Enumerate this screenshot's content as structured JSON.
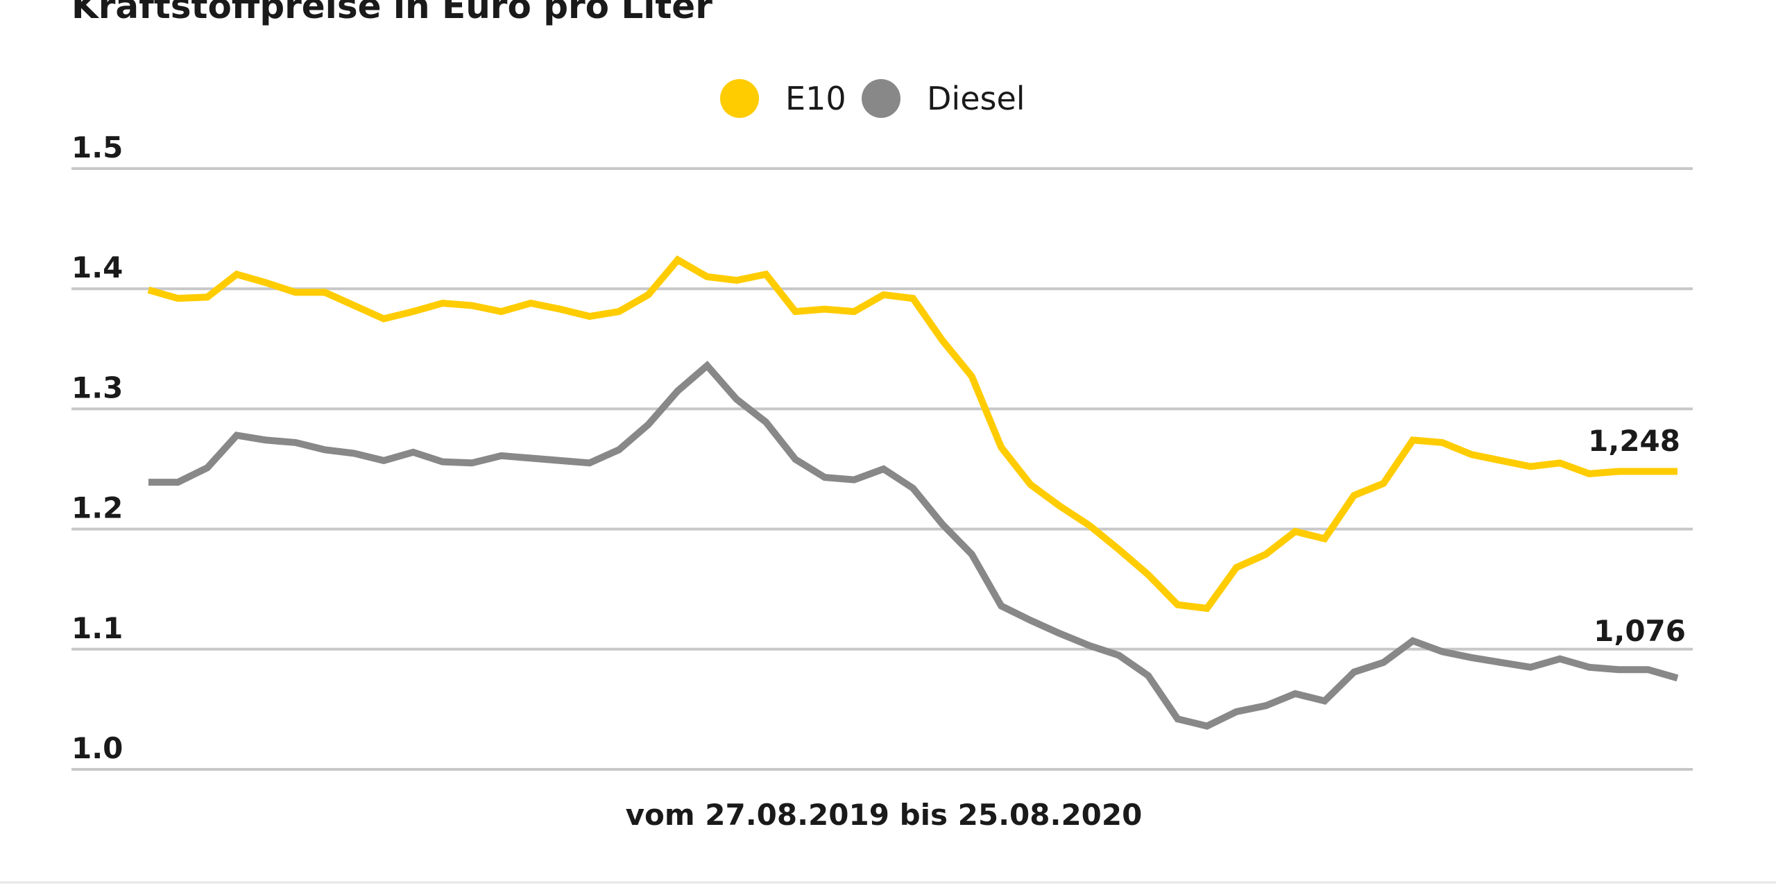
{
  "chart_data": {
    "type": "line",
    "title": "Kraftstoffpreise in Euro pro Liter",
    "xlabel": "vom 27.08.2019 bis 25.08.2020",
    "ylabel": "",
    "ylim": [
      1.0,
      1.5
    ],
    "yticks": [
      "1.0",
      "1.1",
      "1.2",
      "1.3",
      "1.4",
      "1.5"
    ],
    "grid": true,
    "legend_position": "top-center",
    "series": [
      {
        "name": "E10",
        "color": "#FFCC00",
        "end_label": "1,248",
        "values": [
          1.399,
          1.392,
          1.393,
          1.412,
          1.405,
          1.397,
          1.397,
          1.386,
          1.375,
          1.381,
          1.388,
          1.386,
          1.381,
          1.388,
          1.383,
          1.377,
          1.381,
          1.395,
          1.424,
          1.41,
          1.407,
          1.412,
          1.381,
          1.383,
          1.381,
          1.395,
          1.392,
          1.357,
          1.327,
          1.268,
          1.237,
          1.219,
          1.203,
          1.183,
          1.162,
          1.137,
          1.134,
          1.168,
          1.179,
          1.198,
          1.192,
          1.228,
          1.238,
          1.274,
          1.272,
          1.262,
          1.257,
          1.252,
          1.255,
          1.246,
          1.248,
          1.248,
          1.248
        ]
      },
      {
        "name": "Diesel",
        "color": "#888888",
        "end_label": "1,076",
        "values": [
          1.239,
          1.239,
          1.251,
          1.278,
          1.274,
          1.272,
          1.266,
          1.263,
          1.257,
          1.264,
          1.256,
          1.255,
          1.261,
          1.259,
          1.257,
          1.255,
          1.266,
          1.287,
          1.315,
          1.336,
          1.308,
          1.289,
          1.258,
          1.243,
          1.241,
          1.25,
          1.234,
          1.204,
          1.179,
          1.136,
          1.124,
          1.113,
          1.103,
          1.095,
          1.078,
          1.042,
          1.036,
          1.048,
          1.053,
          1.063,
          1.057,
          1.081,
          1.089,
          1.107,
          1.098,
          1.093,
          1.089,
          1.085,
          1.092,
          1.085,
          1.083,
          1.083,
          1.076
        ]
      }
    ]
  }
}
